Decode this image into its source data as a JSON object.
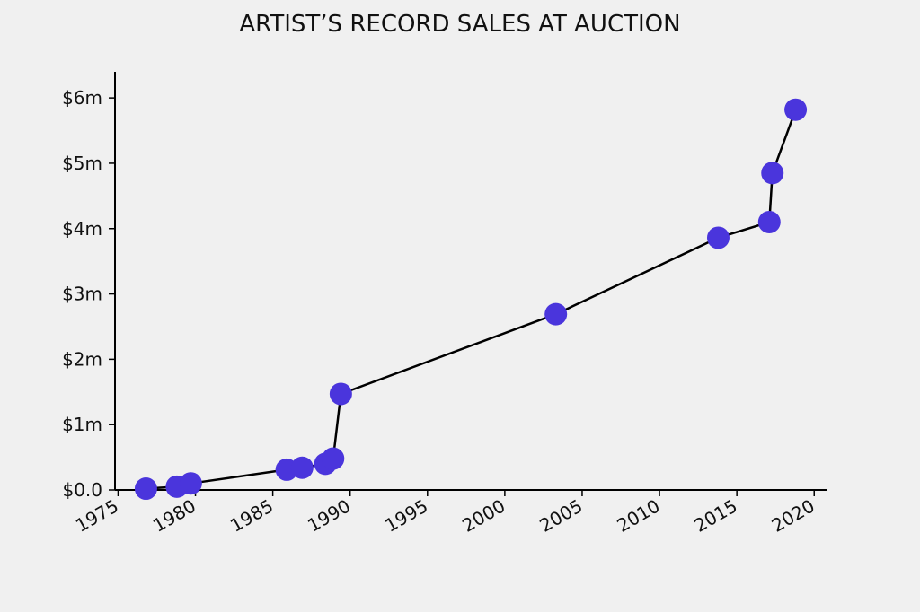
{
  "chart_data": {
    "type": "line",
    "title": "ARTIST’S RECORD SALES AT AUCTION",
    "xlabel": "",
    "ylabel": "",
    "xlim": [
      1974.8,
      2020.8
    ],
    "ylim": [
      0,
      6.4
    ],
    "x_ticks": [
      {
        "value": 1975,
        "label": "1975"
      },
      {
        "value": 1980,
        "label": "1980"
      },
      {
        "value": 1985,
        "label": "1985"
      },
      {
        "value": 1990,
        "label": "1990"
      },
      {
        "value": 1995,
        "label": "1995"
      },
      {
        "value": 2000,
        "label": "2000"
      },
      {
        "value": 2005,
        "label": "2005"
      },
      {
        "value": 2010,
        "label": "2010"
      },
      {
        "value": 2015,
        "label": "2015"
      },
      {
        "value": 2020,
        "label": "2020"
      }
    ],
    "y_ticks": [
      {
        "value": 0,
        "label": "$0.0"
      },
      {
        "value": 1,
        "label": "$1m"
      },
      {
        "value": 2,
        "label": "$2m"
      },
      {
        "value": 3,
        "label": "$3m"
      },
      {
        "value": 4,
        "label": "$4m"
      },
      {
        "value": 5,
        "label": "$5m"
      },
      {
        "value": 6,
        "label": "$6m"
      }
    ],
    "grid": false,
    "series": [
      {
        "name": "",
        "x": [
          1976.8,
          1978.8,
          1979.7,
          1985.9,
          1986.9,
          1988.4,
          1988.9,
          1989.4,
          2003.3,
          2013.8,
          2017.1,
          2017.3,
          2018.8
        ],
        "y": [
          0.02,
          0.05,
          0.1,
          0.31,
          0.34,
          0.4,
          0.48,
          1.47,
          2.69,
          3.86,
          4.1,
          4.85,
          5.82
        ]
      }
    ],
    "colors": {
      "marker": "#4a35dc",
      "line": "#000000",
      "axis": "#000000",
      "background": "#f0f0f0"
    }
  }
}
